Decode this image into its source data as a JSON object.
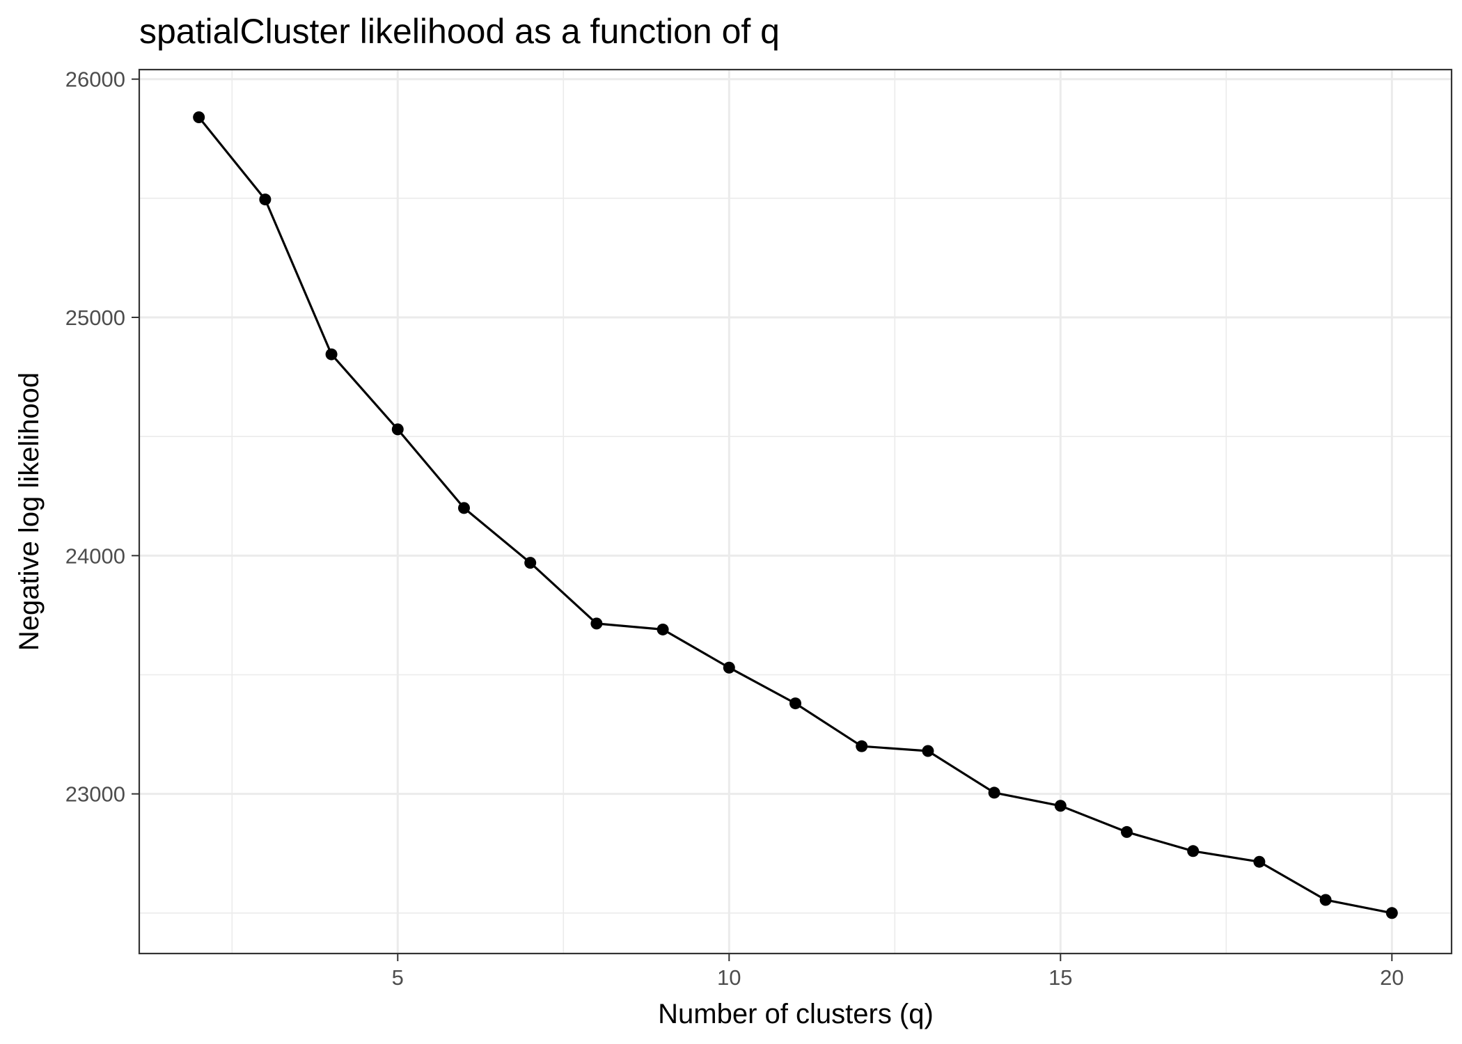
{
  "chart_data": {
    "type": "line",
    "title": "spatialCluster likelihood as a function of q",
    "xlabel": "Number of clusters (q)",
    "ylabel": "Negative log likelihood",
    "x": [
      2,
      3,
      4,
      5,
      6,
      7,
      8,
      9,
      10,
      11,
      12,
      13,
      14,
      15,
      16,
      17,
      18,
      19,
      20
    ],
    "series": [
      {
        "values": [
          25840,
          25495,
          24845,
          24530,
          24200,
          23970,
          23715,
          23690,
          23530,
          23380,
          23200,
          23180,
          23005,
          22950,
          22840,
          22760,
          22715,
          22555,
          22500
        ]
      }
    ],
    "xlim": [
      1.1,
      20.9
    ],
    "ylim": [
      22330,
      26040
    ],
    "xticks": [
      "5",
      "10",
      "15",
      "20"
    ],
    "yticks": [
      "23000",
      "24000",
      "25000",
      "26000"
    ],
    "grid": true,
    "legend": "none",
    "colors": {
      "series": "#000000",
      "grid": "#ebebeb",
      "border": "#333333",
      "tick_label": "#4d4d4d",
      "background": "#ffffff"
    }
  }
}
